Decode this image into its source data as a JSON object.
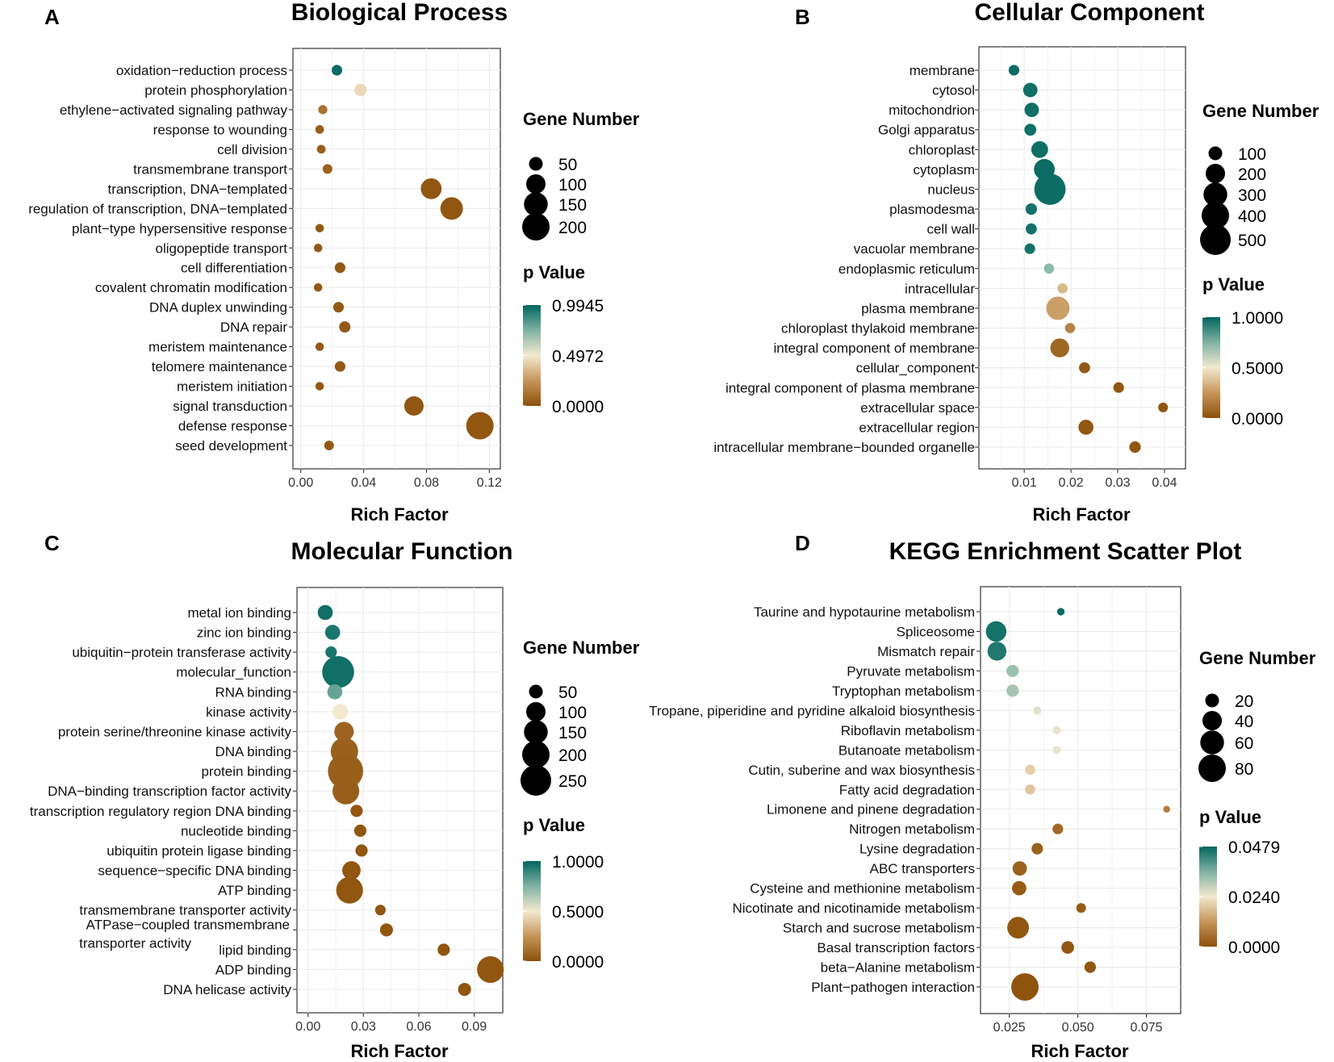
{
  "chart_data": [
    {
      "type": "scatter",
      "panel": "A",
      "title": "Biological Process",
      "xlabel": "Rich Factor",
      "xlim": [
        -0.005,
        0.127
      ],
      "xticks": [
        0.0,
        0.04,
        0.08,
        0.12
      ],
      "xtick_labels": [
        "0.00",
        "0.04",
        "0.08",
        "0.12"
      ],
      "size_legend": {
        "title": "Gene Number",
        "values": [
          50,
          100,
          150,
          200
        ],
        "labels": [
          "50",
          "100",
          "150",
          "200"
        ]
      },
      "color_legend": {
        "title": "p Value",
        "min": 0.0,
        "max": 0.9945,
        "labels": [
          "0.9945",
          "0.4972",
          "0.0000"
        ]
      },
      "points": [
        {
          "term": "oxidation−reduction process",
          "rich": 0.023,
          "genes": 30,
          "p": 0.97
        },
        {
          "term": "protein phosphorylation",
          "rich": 0.038,
          "genes": 40,
          "p": 0.45
        },
        {
          "term": "ethylene−activated signaling pathway",
          "rich": 0.014,
          "genes": 22,
          "p": 0.12
        },
        {
          "term": "response to wounding",
          "rich": 0.012,
          "genes": 20,
          "p": 0.05
        },
        {
          "term": "cell division",
          "rich": 0.013,
          "genes": 20,
          "p": 0.05
        },
        {
          "term": "transmembrane transport",
          "rich": 0.017,
          "genes": 25,
          "p": 0.06
        },
        {
          "term": "transcription, DNA−templated",
          "rich": 0.083,
          "genes": 115,
          "p": 0.02
        },
        {
          "term": "regulation of transcription, DNA−templated",
          "rich": 0.096,
          "genes": 135,
          "p": 0.02
        },
        {
          "term": "plant−type hypersensitive response",
          "rich": 0.012,
          "genes": 19,
          "p": 0.03
        },
        {
          "term": "oligopeptide transport",
          "rich": 0.011,
          "genes": 19,
          "p": 0.03
        },
        {
          "term": "cell differentiation",
          "rich": 0.025,
          "genes": 30,
          "p": 0.03
        },
        {
          "term": "covalent chromatin modification",
          "rich": 0.011,
          "genes": 19,
          "p": 0.03
        },
        {
          "term": "DNA duplex unwinding",
          "rich": 0.024,
          "genes": 30,
          "p": 0.03
        },
        {
          "term": "DNA repair",
          "rich": 0.028,
          "genes": 34,
          "p": 0.03
        },
        {
          "term": "meristem maintenance",
          "rich": 0.012,
          "genes": 19,
          "p": 0.03
        },
        {
          "term": "telomere maintenance",
          "rich": 0.025,
          "genes": 30,
          "p": 0.03
        },
        {
          "term": "meristem initiation",
          "rich": 0.012,
          "genes": 19,
          "p": 0.03
        },
        {
          "term": "signal transduction",
          "rich": 0.072,
          "genes": 100,
          "p": 0.02
        },
        {
          "term": "defense response",
          "rich": 0.114,
          "genes": 200,
          "p": 0.02
        },
        {
          "term": "seed development",
          "rich": 0.018,
          "genes": 25,
          "p": 0.03
        }
      ]
    },
    {
      "type": "scatter",
      "panel": "B",
      "title": "Cellular Component",
      "xlabel": "Rich Factor",
      "xlim": [
        0.0003,
        0.0445
      ],
      "xticks": [
        0.01,
        0.02,
        0.03,
        0.04
      ],
      "xtick_labels": [
        "0.01",
        "0.02",
        "0.03",
        "0.04"
      ],
      "size_legend": {
        "title": "Gene Number",
        "values": [
          100,
          200,
          300,
          400,
          500
        ],
        "labels": [
          "100",
          "200",
          "300",
          "400",
          "500"
        ]
      },
      "color_legend": {
        "title": "p Value",
        "min": 0.0,
        "max": 1.0,
        "labels": [
          "1.0000",
          "0.5000",
          "0.0000"
        ]
      },
      "points": [
        {
          "term": "membrane",
          "rich": 0.0078,
          "genes": 60,
          "p": 0.98
        },
        {
          "term": "cytosol",
          "rich": 0.0113,
          "genes": 110,
          "p": 0.97
        },
        {
          "term": "mitochondrion",
          "rich": 0.0116,
          "genes": 110,
          "p": 0.97
        },
        {
          "term": "Golgi apparatus",
          "rich": 0.0113,
          "genes": 75,
          "p": 0.97
        },
        {
          "term": "chloroplast",
          "rich": 0.0133,
          "genes": 150,
          "p": 0.97
        },
        {
          "term": "cytoplasm",
          "rich": 0.0143,
          "genes": 230,
          "p": 0.98
        },
        {
          "term": "nucleus",
          "rich": 0.0155,
          "genes": 520,
          "p": 0.98
        },
        {
          "term": "plasmodesma",
          "rich": 0.0115,
          "genes": 70,
          "p": 0.96
        },
        {
          "term": "cell wall",
          "rich": 0.0115,
          "genes": 65,
          "p": 0.96
        },
        {
          "term": "vacuolar membrane",
          "rich": 0.0112,
          "genes": 60,
          "p": 0.96
        },
        {
          "term": "endoplasmic reticulum",
          "rich": 0.0153,
          "genes": 55,
          "p": 0.72
        },
        {
          "term": "intracellular",
          "rich": 0.0182,
          "genes": 55,
          "p": 0.35
        },
        {
          "term": "plasma membrane",
          "rich": 0.0172,
          "genes": 290,
          "p": 0.28
        },
        {
          "term": "chloroplast thylakoid membrane",
          "rich": 0.0198,
          "genes": 55,
          "p": 0.18
        },
        {
          "term": "integral component of membrane",
          "rich": 0.0176,
          "genes": 190,
          "p": 0.08
        },
        {
          "term": "cellular_component",
          "rich": 0.0229,
          "genes": 65,
          "p": 0.03
        },
        {
          "term": "integral component of plasma membrane",
          "rich": 0.0302,
          "genes": 60,
          "p": 0.02
        },
        {
          "term": "extracellular space",
          "rich": 0.0397,
          "genes": 50,
          "p": 0.02
        },
        {
          "term": "extracellular region",
          "rich": 0.0232,
          "genes": 120,
          "p": 0.02
        },
        {
          "term": "intracellular membrane−bounded organelle",
          "rich": 0.0337,
          "genes": 70,
          "p": 0.02
        }
      ]
    },
    {
      "type": "scatter",
      "panel": "C",
      "title": "Molecular Function",
      "xlabel": "Rich Factor",
      "xlim": [
        -0.006,
        0.1055
      ],
      "xticks": [
        0.0,
        0.03,
        0.06,
        0.09
      ],
      "xtick_labels": [
        "0.00",
        "0.03",
        "0.06",
        "0.09"
      ],
      "size_legend": {
        "title": "Gene Number",
        "values": [
          50,
          100,
          150,
          200,
          250
        ],
        "labels": [
          "50",
          "100",
          "150",
          "200",
          "250"
        ]
      },
      "color_legend": {
        "title": "p Value",
        "min": 0.0,
        "max": 1.0,
        "labels": [
          "1.0000",
          "0.5000",
          "0.0000"
        ]
      },
      "points": [
        {
          "term": "metal ion binding",
          "rich": 0.0093,
          "genes": 60,
          "p": 0.97
        },
        {
          "term": "zinc ion binding",
          "rich": 0.0133,
          "genes": 60,
          "p": 0.95
        },
        {
          "term": "ubiquitin−protein transferase activity",
          "rich": 0.0125,
          "genes": 35,
          "p": 0.95
        },
        {
          "term": "molecular_function",
          "rich": 0.0163,
          "genes": 270,
          "p": 0.97
        },
        {
          "term": "RNA binding",
          "rich": 0.0145,
          "genes": 60,
          "p": 0.8
        },
        {
          "term": "kinase activity",
          "rich": 0.0175,
          "genes": 65,
          "p": 0.5
        },
        {
          "term": "protein serine/threonine kinase activity",
          "rich": 0.0195,
          "genes": 100,
          "p": 0.07
        },
        {
          "term": "DNA binding",
          "rich": 0.0197,
          "genes": 200,
          "p": 0.06
        },
        {
          "term": "protein binding",
          "rich": 0.0203,
          "genes": 330,
          "p": 0.05
        },
        {
          "term": "DNA−binding transcription factor activity",
          "rich": 0.0205,
          "genes": 190,
          "p": 0.05
        },
        {
          "term": "transcription regulatory region DNA binding",
          "rich": 0.0263,
          "genes": 40,
          "p": 0.02
        },
        {
          "term": "nucleotide binding",
          "rich": 0.0283,
          "genes": 40,
          "p": 0.02
        },
        {
          "term": "ubiquitin protein ligase binding",
          "rich": 0.029,
          "genes": 40,
          "p": 0.02
        },
        {
          "term": "sequence−specific DNA binding",
          "rich": 0.0235,
          "genes": 90,
          "p": 0.02
        },
        {
          "term": "ATP binding",
          "rich": 0.0225,
          "genes": 190,
          "p": 0.02
        },
        {
          "term": "transmembrane transporter activity",
          "rich": 0.0392,
          "genes": 30,
          "p": 0.02
        },
        {
          "term": "ATPase−coupled transmembrane transporter activity",
          "rich": 0.0425,
          "genes": 45,
          "p": 0.02
        },
        {
          "term": "lipid binding",
          "rich": 0.0735,
          "genes": 40,
          "p": 0.02
        },
        {
          "term": "ADP binding",
          "rich": 0.0988,
          "genes": 190,
          "p": 0.02
        },
        {
          "term": "DNA helicase activity",
          "rich": 0.0848,
          "genes": 45,
          "p": 0.02
        }
      ]
    },
    {
      "type": "scatter",
      "panel": "D",
      "title": "KEGG Enrichment Scatter Plot",
      "xlabel": "Rich Factor",
      "xlim": [
        0.0145,
        0.0875
      ],
      "xticks": [
        0.025,
        0.05,
        0.075
      ],
      "xtick_labels": [
        "0.025",
        "0.050",
        "0.075"
      ],
      "size_legend": {
        "title": "Gene Number",
        "values": [
          20,
          40,
          60,
          80
        ],
        "labels": [
          "20",
          "40",
          "60",
          "80"
        ]
      },
      "color_legend": {
        "title": "p Value",
        "min": 0.0,
        "max": 0.0479,
        "labels": [
          "0.0479",
          "0.0240",
          "0.0000"
        ]
      },
      "points": [
        {
          "term": "Taurine and hypotaurine metabolism",
          "rich": 0.0438,
          "genes": 6,
          "p": 0.047
        },
        {
          "term": "Spliceosome",
          "rich": 0.0202,
          "genes": 45,
          "p": 0.046
        },
        {
          "term": "Mismatch repair",
          "rich": 0.0205,
          "genes": 38,
          "p": 0.045
        },
        {
          "term": "Pyruvate metabolism",
          "rich": 0.0262,
          "genes": 16,
          "p": 0.033
        },
        {
          "term": "Tryptophan metabolism",
          "rich": 0.0262,
          "genes": 16,
          "p": 0.032
        },
        {
          "term": "Tropane, piperidine and pyridine alkaloid biosynthesis",
          "rich": 0.0352,
          "genes": 7,
          "p": 0.026
        },
        {
          "term": "Riboflavin metabolism",
          "rich": 0.0423,
          "genes": 7,
          "p": 0.025
        },
        {
          "term": "Butanoate metabolism",
          "rich": 0.0423,
          "genes": 7,
          "p": 0.025
        },
        {
          "term": "Cutin, suberine and wax biosynthesis",
          "rich": 0.0326,
          "genes": 11,
          "p": 0.02
        },
        {
          "term": "Fatty acid degradation",
          "rich": 0.0326,
          "genes": 11,
          "p": 0.019
        },
        {
          "term": "Limonene and pinene degradation",
          "rich": 0.0824,
          "genes": 5,
          "p": 0.008
        },
        {
          "term": "Nitrogen metabolism",
          "rich": 0.0427,
          "genes": 12,
          "p": 0.004
        },
        {
          "term": "Lysine degradation",
          "rich": 0.0352,
          "genes": 14,
          "p": 0.003
        },
        {
          "term": "ABC transporters",
          "rich": 0.0288,
          "genes": 22,
          "p": 0.003
        },
        {
          "term": "Cysteine and methionine metabolism",
          "rich": 0.0286,
          "genes": 22,
          "p": 0.002
        },
        {
          "term": "Nicotinate and nicotinamide metabolism",
          "rich": 0.0512,
          "genes": 10,
          "p": 0.002
        },
        {
          "term": "Starch and sucrose metabolism",
          "rich": 0.0282,
          "genes": 50,
          "p": 0.001
        },
        {
          "term": "Basal transcription factors",
          "rich": 0.0463,
          "genes": 17,
          "p": 0.001
        },
        {
          "term": "beta−Alanine metabolism",
          "rich": 0.0545,
          "genes": 14,
          "p": 0.001
        },
        {
          "term": "Plant−pathogen interaction",
          "rich": 0.0307,
          "genes": 80,
          "p": 0.0005
        }
      ]
    }
  ]
}
